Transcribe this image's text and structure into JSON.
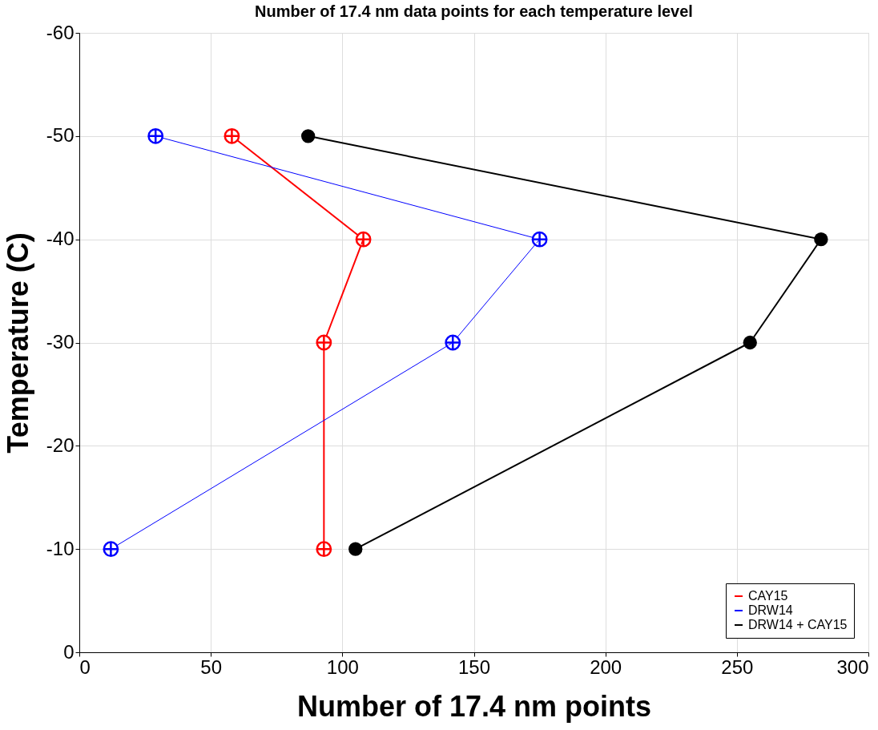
{
  "chart_data": {
    "type": "line",
    "title": "Number of 17.4 nm data points for each temperature level",
    "xlabel": "Number of 17.4 nm points",
    "ylabel": "Temperature (C)",
    "xlim": [
      0,
      300
    ],
    "xticks": [
      0,
      50,
      100,
      150,
      200,
      250,
      300
    ],
    "ylim": [
      0,
      -60
    ],
    "yticks": [
      0,
      -10,
      -20,
      -30,
      -40,
      -50,
      -60
    ],
    "grid": true,
    "legend": "bottom right",
    "series": [
      {
        "name": "CAY15",
        "color": "#ff0000",
        "marker": "cross",
        "x": [
          58,
          108,
          93,
          93
        ],
        "values": [
          -50,
          -40,
          -30,
          -10
        ]
      },
      {
        "name": "DRW14",
        "color": "#0000ff",
        "marker": "cross",
        "x": [
          29,
          175,
          142,
          12
        ],
        "values": [
          -50,
          -40,
          -30,
          -10
        ]
      },
      {
        "name": "DRW14 + CAY15",
        "color": "#000000",
        "marker": "circle",
        "x": [
          87,
          282,
          255,
          105
        ],
        "values": [
          -50,
          -40,
          -30,
          -10
        ]
      }
    ]
  }
}
